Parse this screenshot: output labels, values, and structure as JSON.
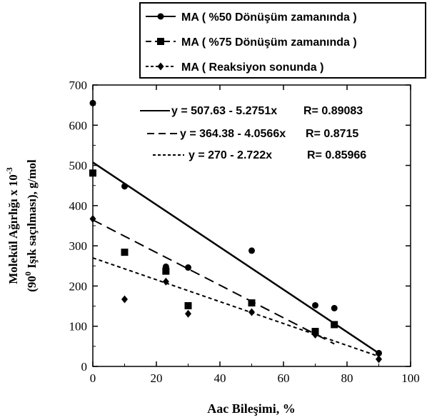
{
  "chart_data": {
    "type": "scatter",
    "xlabel": "Aac Bileşimi, %",
    "ylabel_line1": "Molekül Ağırlığı x 10",
    "ylabel_exp": "-3",
    "ylabel_line2_pre": "(90",
    "ylabel_line2_sup": "0",
    "ylabel_line2_post": " Işık saçılması), g/mol",
    "xlim": [
      0,
      100
    ],
    "ylim": [
      0,
      700
    ],
    "xticks": [
      0,
      20,
      40,
      60,
      80,
      100
    ],
    "yticks": [
      0,
      100,
      200,
      300,
      400,
      500,
      600,
      700
    ],
    "grid": false,
    "legend_position": "top-right outside",
    "series": [
      {
        "name": "MA ( %50 Dönüşüm zamanında )",
        "marker": "circle",
        "line_style": "solid",
        "x": [
          0,
          10,
          23,
          30,
          50,
          70,
          76,
          90
        ],
        "y": [
          655,
          448,
          248,
          246,
          288,
          152,
          145,
          33
        ],
        "fit": {
          "intercept": 507.63,
          "slope": -5.2751,
          "x_range": [
            0,
            90
          ]
        },
        "fit_label": "y = 507.63 - 5.2751x",
        "r_label": "R= 0.89083"
      },
      {
        "name": "MA ( %75 Dönüşüm zamanında )",
        "marker": "square",
        "line_style": "dashed",
        "x": [
          0,
          10,
          23,
          30,
          50,
          70,
          76
        ],
        "y": [
          481,
          284,
          237,
          151,
          158,
          87,
          104
        ],
        "fit": {
          "intercept": 364.38,
          "slope": -4.0566,
          "x_range": [
            0,
            76
          ]
        },
        "fit_label": "y = 364.38 - 4.0566x",
        "r_label": "R= 0.8715"
      },
      {
        "name": "MA ( Reaksiyon sonunda )",
        "marker": "diamond",
        "line_style": "dotted",
        "x": [
          0,
          10,
          23,
          30,
          50,
          70,
          90
        ],
        "y": [
          367,
          167,
          211,
          131,
          135,
          79,
          18
        ],
        "fit": {
          "intercept": 270,
          "slope": -2.722,
          "x_range": [
            0,
            90
          ]
        },
        "fit_label": "y = 270 - 2.722x",
        "r_label": "R= 0.85966"
      }
    ]
  }
}
